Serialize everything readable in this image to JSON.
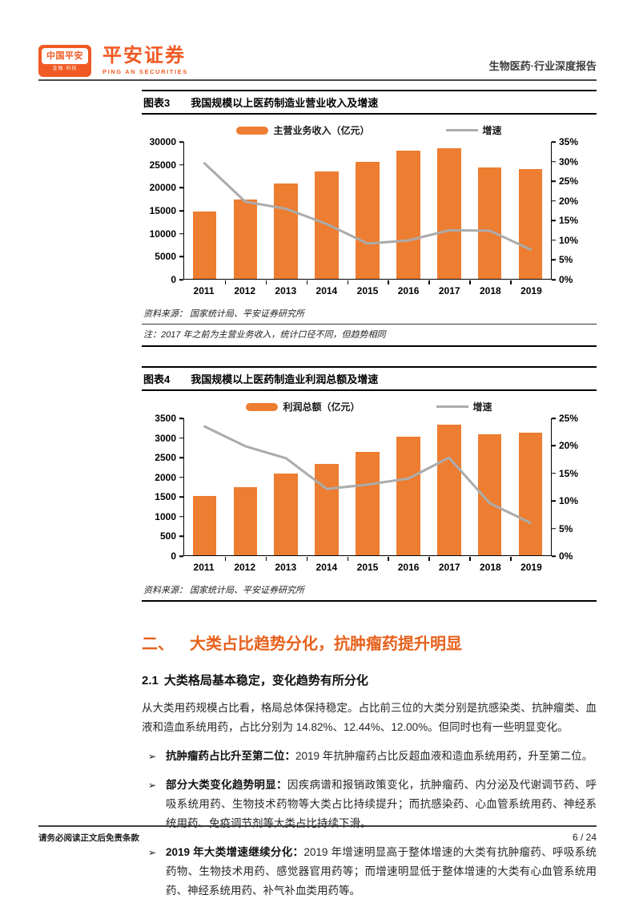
{
  "header": {
    "logo_badge_title": "中国平安",
    "logo_badge_sub": "金融·科技",
    "brand_cn": "平安证券",
    "brand_en": "PING AN SECURITIES",
    "report_tag": "生物医药·行业深度报告"
  },
  "figure3": {
    "label": "图表3",
    "title": "我国规模以上医药制造业营业收入及增速",
    "source": "资料来源： 国家统计局、平安证券研究所",
    "note": "注：2017 年之前为主营业务收入，统计口径不同，但趋势相同"
  },
  "figure4": {
    "label": "图表4",
    "title": "我国规模以上医药制造业利润总额及增速",
    "source": "资料来源： 国家统计局、平安证券研究所"
  },
  "chart_data": [
    {
      "type": "bar",
      "title": "我国规模以上医药制造业营业收入及增速",
      "categories": [
        "2011",
        "2012",
        "2013",
        "2014",
        "2015",
        "2016",
        "2017",
        "2018",
        "2019"
      ],
      "series": [
        {
          "name": "主营业务收入（亿元）",
          "kind": "bar",
          "axis": "left",
          "color": "#ED7D31",
          "values": [
            14800,
            17300,
            20900,
            23500,
            25700,
            28100,
            28550,
            24400,
            24000
          ]
        },
        {
          "name": "增速",
          "kind": "line",
          "axis": "right",
          "color": "#ABABAB",
          "values": [
            29.5,
            19.7,
            17.9,
            14.0,
            9.0,
            9.8,
            12.4,
            12.3,
            7.5
          ]
        }
      ],
      "left_axis": {
        "min": 0,
        "max": 30000,
        "ticks": [
          "0",
          "5000",
          "10000",
          "15000",
          "20000",
          "25000",
          "30000"
        ]
      },
      "right_axis": {
        "min": 0,
        "max": 35,
        "ticks": [
          "0%",
          "5%",
          "10%",
          "15%",
          "20%",
          "25%",
          "30%",
          "35%"
        ]
      },
      "grid": false,
      "legend_position": "top"
    },
    {
      "type": "bar",
      "title": "我国规模以上医药制造业利润总额及增速",
      "categories": [
        "2011",
        "2012",
        "2013",
        "2014",
        "2015",
        "2016",
        "2017",
        "2018",
        "2019"
      ],
      "series": [
        {
          "name": "利润总额（亿元）",
          "kind": "bar",
          "axis": "left",
          "color": "#ED7D31",
          "values": [
            1510,
            1750,
            2090,
            2340,
            2650,
            3030,
            3340,
            3100,
            3130
          ]
        },
        {
          "name": "增速",
          "kind": "line",
          "axis": "right",
          "color": "#ABABAB",
          "values": [
            23.5,
            19.9,
            17.7,
            12.1,
            12.9,
            14.0,
            17.8,
            9.5,
            5.9
          ]
        }
      ],
      "left_axis": {
        "min": 0,
        "max": 3500,
        "ticks": [
          "0",
          "500",
          "1000",
          "1500",
          "2000",
          "2500",
          "3000",
          "3500"
        ]
      },
      "right_axis": {
        "min": 0,
        "max": 25,
        "ticks": [
          "0%",
          "5%",
          "10%",
          "15%",
          "20%",
          "25%"
        ]
      },
      "grid": false,
      "legend_position": "top"
    }
  ],
  "section": {
    "bullet_marker": "➢",
    "h2_num": "二、",
    "h2_text": "大类占比趋势分化，抗肿瘤药提升明显",
    "h3_num": "2.1",
    "h3_text": "大类格局基本稳定，变化趋势有所分化",
    "paragraph": "从大类用药规模占比看，格局总体保持稳定。占比前三位的大类分别是抗感染类、抗肿瘤类、血液和造血系统用药，占比分别为 14.82%、12.44%、12.00%。但同时也有一些明显变化。",
    "bullets": [
      {
        "lead": "抗肿瘤药占比升至第二位：",
        "text": "2019 年抗肿瘤药占比反超血液和造血系统用药，升至第二位。"
      },
      {
        "lead": "部分大类变化趋势明显：",
        "text": "因疾病谱和报销政策变化，抗肿瘤药、内分泌及代谢调节药、呼吸系统用药、生物技术药物等大类占比持续提升；而抗感染药、心血管系统用药、神经系统用药、免疫调节剂等大类占比持续下滑。"
      },
      {
        "lead": "2019 年大类增速继续分化：",
        "text": "2019 年增速明显高于整体增速的大类有抗肿瘤药、呼吸系统药物、生物技术用药、感觉器官用药等；而增速明显低于整体增速的大类有心血管系统用药、神经系统用药、补气补血类用药等。"
      }
    ]
  },
  "footer": {
    "disclaimer": "请务必阅读正文后免责条款",
    "page_number": "6 / 24"
  },
  "colors": {
    "brand_orange": "#F05A23",
    "heading_orange": "#E8611C",
    "bar_orange": "#ED7D31",
    "line_gray": "#ABABAB"
  }
}
